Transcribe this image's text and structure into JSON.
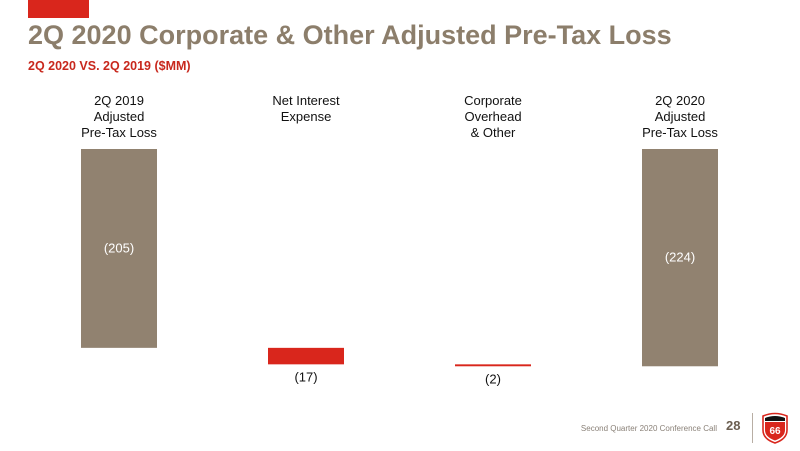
{
  "slide": {
    "title": "2Q 2020 Corporate & Other Adjusted Pre-Tax Loss",
    "subtitle": "2Q 2020 VS. 2Q 2019 ($MM)",
    "footer_text": "Second Quarter 2020 Conference Call",
    "page_number": "28",
    "logo_text": "66"
  },
  "colors": {
    "title": "#8c7e6b",
    "subtitle": "#c8281d",
    "accent": "#d9261c",
    "total_bar": "#918270",
    "change_bar": "#d9261c",
    "bar_label_on_fill": "#ffffff",
    "bar_label_outside": "#111111"
  },
  "chart_data": {
    "type": "bar",
    "subtype": "waterfall",
    "categories": [
      "2Q 2019\nAdjusted\nPre-Tax Loss",
      "Net Interest\nExpense",
      "Corporate\nOverhead\n& Other",
      "2Q 2020\nAdjusted\nPre-Tax Loss"
    ],
    "values": [
      -205,
      -17,
      -2,
      -224
    ],
    "value_labels": [
      "(205)",
      "(17)",
      "(2)",
      "(224)"
    ],
    "bar_kinds": [
      "total",
      "change",
      "change",
      "total"
    ],
    "title": "",
    "xlabel": "",
    "ylabel": "",
    "ylim": [
      -224,
      0
    ],
    "grid": false,
    "legend": "none"
  }
}
